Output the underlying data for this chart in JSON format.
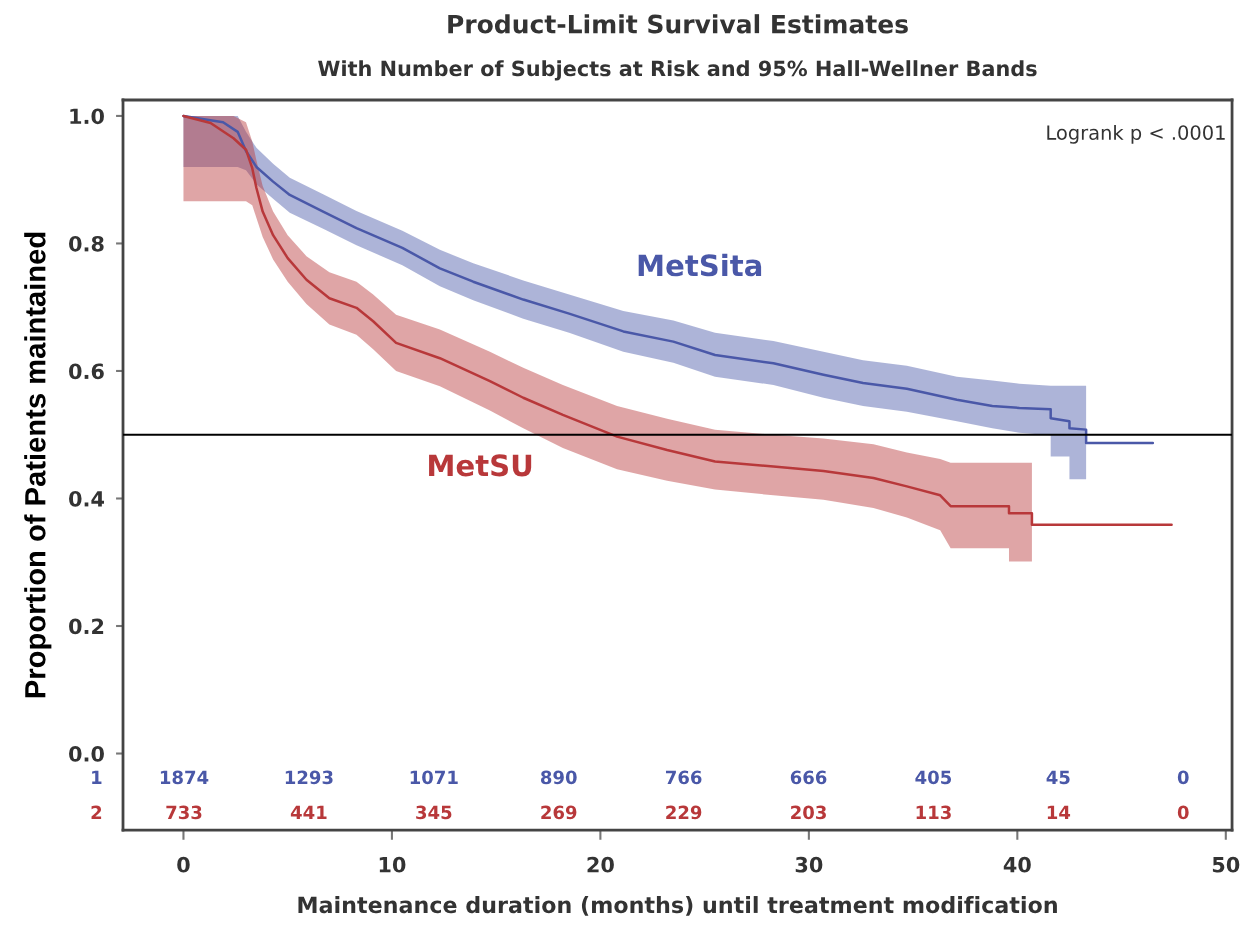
{
  "chart_data": {
    "type": "line",
    "title": "Product-Limit Survival Estimates",
    "subtitle": "With Number of Subjects at Risk and 95% Hall-Wellner Bands",
    "xlabel": "Maintenance duration (months) until treatment modification",
    "ylabel": "Proportion of Patients maintained",
    "xlim": [
      -2.9,
      50.3
    ],
    "ylim": [
      -0.12,
      1.025
    ],
    "xticks": [
      0,
      10,
      20,
      30,
      40,
      50
    ],
    "yticks": [
      {
        "value": 0,
        "label": "0.0"
      },
      {
        "value": 0.2,
        "label": "0.2"
      },
      {
        "value": 0.4,
        "label": "0.4"
      },
      {
        "value": 0.6,
        "label": "0.6"
      },
      {
        "value": 0.8,
        "label": "0.8"
      },
      {
        "value": 1,
        "label": "1.0"
      }
    ],
    "series": [
      {
        "name": "MetSita",
        "color": "#4a58a8",
        "x": [
          0,
          1.9,
          2.6,
          3.0,
          3.5,
          4.3,
          5.1,
          6.7,
          8.3,
          10.5,
          12.3,
          13.9,
          16.3,
          18.5,
          21.1,
          23.5,
          25.5,
          28.3,
          30.7,
          32.6,
          34.7,
          37.1,
          38.8,
          40.1,
          41.6,
          41.6,
          42.5,
          42.5,
          43.3,
          43.3,
          46.5
        ],
        "values": [
          1.0,
          0.99,
          0.975,
          0.945,
          0.92,
          0.897,
          0.876,
          0.85,
          0.824,
          0.793,
          0.761,
          0.74,
          0.712,
          0.69,
          0.662,
          0.646,
          0.625,
          0.612,
          0.594,
          0.581,
          0.572,
          0.555,
          0.545,
          0.542,
          0.54,
          0.526,
          0.521,
          0.51,
          0.508,
          0.487,
          0.487
        ],
        "upper": [
          1.0,
          1.0,
          1.0,
          0.975,
          0.95,
          0.925,
          0.903,
          0.877,
          0.851,
          0.82,
          0.79,
          0.769,
          0.742,
          0.72,
          0.694,
          0.679,
          0.66,
          0.647,
          0.63,
          0.617,
          0.608,
          0.591,
          0.585,
          0.58,
          0.577,
          0.577,
          0.577,
          0.577,
          0.577,
          null,
          null
        ],
        "lower": [
          0.92,
          0.92,
          0.92,
          0.915,
          0.893,
          0.87,
          0.848,
          0.823,
          0.797,
          0.766,
          0.733,
          0.711,
          0.682,
          0.66,
          0.63,
          0.613,
          0.591,
          0.578,
          0.558,
          0.545,
          0.536,
          0.521,
          0.51,
          0.503,
          0.499,
          0.466,
          0.466,
          0.43,
          0.43,
          null,
          null
        ]
      },
      {
        "name": "MetSU",
        "color": "#b8383a",
        "x": [
          0,
          1.3,
          2.4,
          3.0,
          3.3,
          3.5,
          3.8,
          4.3,
          5.0,
          5.9,
          7.0,
          8.3,
          9.1,
          10.2,
          12.3,
          14.7,
          16.3,
          18.2,
          20.8,
          23.2,
          25.5,
          28.3,
          30.7,
          33.1,
          34.7,
          36.3,
          36.8,
          39.6,
          39.6,
          40.7,
          40.7,
          47.4
        ],
        "values": [
          1.0,
          0.989,
          0.965,
          0.947,
          0.918,
          0.887,
          0.85,
          0.813,
          0.777,
          0.743,
          0.714,
          0.699,
          0.678,
          0.644,
          0.62,
          0.584,
          0.558,
          0.531,
          0.497,
          0.476,
          0.458,
          0.45,
          0.443,
          0.432,
          0.419,
          0.405,
          0.388,
          0.388,
          0.377,
          0.377,
          0.359,
          0.359
        ],
        "upper": [
          1.0,
          1.0,
          1.0,
          0.99,
          0.96,
          0.93,
          0.89,
          0.85,
          0.813,
          0.78,
          0.755,
          0.74,
          0.72,
          0.688,
          0.665,
          0.63,
          0.605,
          0.578,
          0.545,
          0.525,
          0.508,
          0.5,
          0.494,
          0.485,
          0.472,
          0.462,
          0.456,
          0.456,
          0.456,
          0.456,
          0.456,
          null
        ],
        "lower": [
          0.866,
          0.866,
          0.866,
          0.866,
          0.86,
          0.84,
          0.81,
          0.775,
          0.74,
          0.705,
          0.673,
          0.657,
          0.634,
          0.6,
          0.576,
          0.538,
          0.51,
          0.479,
          0.446,
          0.428,
          0.414,
          0.405,
          0.398,
          0.385,
          0.37,
          0.35,
          0.322,
          0.322,
          0.301,
          0.301,
          0.301,
          null
        ]
      }
    ],
    "ref_lines": [
      {
        "axis": "y",
        "value": 0.5,
        "color": "#000000"
      }
    ],
    "annotations": [
      "Logrank p < .0001",
      "1",
      "1874",
      "1293",
      "1071",
      "890",
      "766",
      "666",
      "405",
      "45",
      "0",
      "2",
      "733",
      "441",
      "345",
      "269",
      "229",
      "203",
      "113",
      "14",
      "0"
    ]
  }
}
